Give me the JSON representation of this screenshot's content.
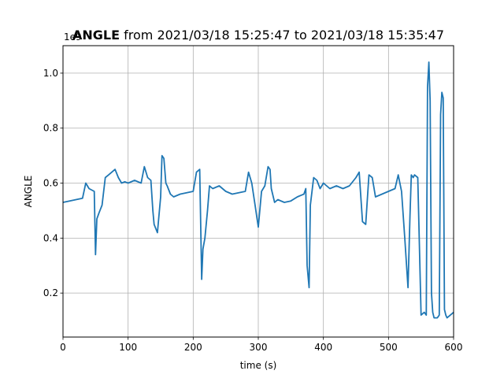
{
  "chart_data": {
    "type": "line",
    "title_bold": "ANGLE",
    "title_rest": " from 2021/03/18 15:25:47 to 2021/03/18 15:35:47",
    "xlabel": "time (s)",
    "ylabel": "ANGLE",
    "y_offset_label": "1e9",
    "xlim": [
      0,
      600
    ],
    "ylim": [
      0.04,
      1.1
    ],
    "xticks": [
      0,
      100,
      200,
      300,
      400,
      500,
      600
    ],
    "xtick_labels": [
      "0",
      "100",
      "200",
      "300",
      "400",
      "500",
      "600"
    ],
    "yticks": [
      0.2,
      0.4,
      0.6,
      0.8,
      1.0
    ],
    "ytick_labels": [
      "0.2",
      "0.4",
      "0.6",
      "0.8",
      "1.0"
    ],
    "grid": true,
    "line_color": "#1f77b4",
    "series": [
      {
        "x": [
          0,
          10,
          20,
          30,
          35,
          40,
          48,
          50,
          52,
          55,
          60,
          65,
          70,
          75,
          80,
          85,
          90,
          95,
          100,
          110,
          120,
          125,
          130,
          135,
          138,
          140,
          145,
          150,
          152,
          155,
          158,
          160,
          165,
          170,
          180,
          190,
          200,
          205,
          210,
          213,
          215,
          218,
          222,
          225,
          230,
          240,
          250,
          260,
          270,
          280,
          285,
          290,
          295,
          300,
          305,
          310,
          315,
          318,
          320,
          325,
          330,
          340,
          350,
          360,
          370,
          373,
          375,
          378,
          380,
          385,
          390,
          395,
          400,
          405,
          410,
          420,
          430,
          440,
          450,
          455,
          460,
          465,
          470,
          475,
          480,
          490,
          500,
          510,
          515,
          520,
          525,
          530,
          533,
          535,
          538,
          540,
          545,
          550,
          555,
          558,
          560,
          562,
          564,
          566,
          568,
          570,
          575,
          578,
          580,
          582,
          584,
          586,
          588,
          590,
          595,
          600
        ],
        "y": [
          0.53,
          0.535,
          0.54,
          0.545,
          0.6,
          0.58,
          0.57,
          0.34,
          0.47,
          0.49,
          0.52,
          0.62,
          0.63,
          0.64,
          0.65,
          0.62,
          0.6,
          0.605,
          0.6,
          0.61,
          0.6,
          0.66,
          0.62,
          0.61,
          0.5,
          0.45,
          0.42,
          0.55,
          0.7,
          0.69,
          0.6,
          0.59,
          0.56,
          0.55,
          0.56,
          0.565,
          0.57,
          0.64,
          0.65,
          0.25,
          0.36,
          0.4,
          0.5,
          0.59,
          0.58,
          0.59,
          0.57,
          0.56,
          0.565,
          0.57,
          0.64,
          0.6,
          0.52,
          0.44,
          0.57,
          0.59,
          0.66,
          0.65,
          0.58,
          0.53,
          0.54,
          0.53,
          0.535,
          0.55,
          0.56,
          0.58,
          0.3,
          0.22,
          0.52,
          0.62,
          0.61,
          0.58,
          0.6,
          0.59,
          0.58,
          0.59,
          0.58,
          0.59,
          0.62,
          0.64,
          0.46,
          0.45,
          0.63,
          0.62,
          0.55,
          0.56,
          0.57,
          0.58,
          0.63,
          0.57,
          0.4,
          0.22,
          0.48,
          0.63,
          0.62,
          0.63,
          0.62,
          0.12,
          0.13,
          0.12,
          0.95,
          1.04,
          0.9,
          0.2,
          0.13,
          0.11,
          0.11,
          0.12,
          0.85,
          0.93,
          0.91,
          0.14,
          0.12,
          0.11,
          0.12,
          0.13
        ]
      }
    ]
  }
}
